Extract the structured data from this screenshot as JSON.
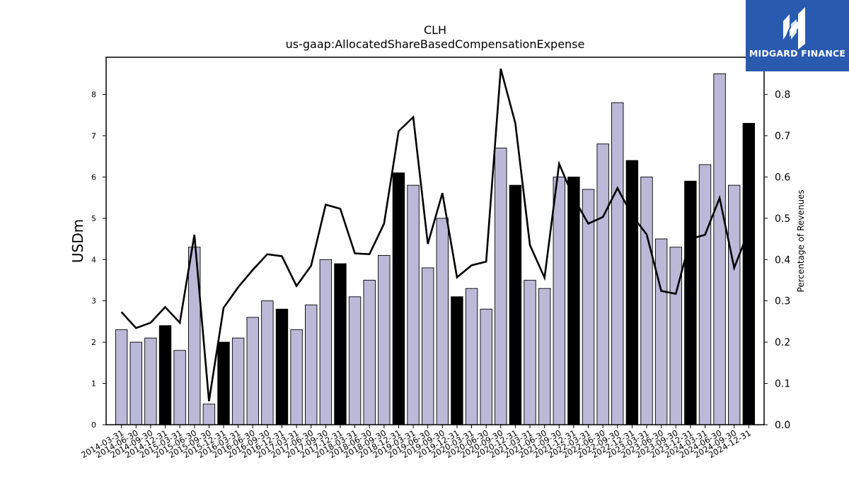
{
  "brand": {
    "name": "MIDGARD FINANCE",
    "bg_color": "#2a5ab0"
  },
  "chart_data": {
    "type": "bar",
    "title": "CLH",
    "subtitle": "us-gaap:AllocatedShareBasedCompensationExpense",
    "ylabel": "USDm",
    "y2label": "Percentage of Revenues",
    "ylim": [
      0,
      8.9
    ],
    "y2lim": [
      0,
      0.89
    ],
    "yticks": [
      0,
      1,
      2,
      3,
      4,
      5,
      6,
      7,
      8
    ],
    "y2ticks": [
      "0.0",
      "0.1",
      "0.2",
      "0.3",
      "0.4",
      "0.5",
      "0.6",
      "0.7",
      "0.8"
    ],
    "categories": [
      "2014-03-31",
      "2014-06-30",
      "2014-09-30",
      "2014-12-31",
      "2015-03-31",
      "2015-06-30",
      "2015-09-30",
      "2015-12-31",
      "2016-03-31",
      "2016-06-30",
      "2016-09-30",
      "2016-12-31",
      "2017-03-31",
      "2017-06-30",
      "2017-09-30",
      "2017-12-31",
      "2018-03-31",
      "2018-06-30",
      "2018-09-30",
      "2018-12-31",
      "2019-03-31",
      "2019-06-30",
      "2019-09-30",
      "2019-12-31",
      "2020-03-31",
      "2020-06-30",
      "2020-09-30",
      "2020-12-31",
      "2021-03-31",
      "2021-06-30",
      "2021-09-30",
      "2021-12-31",
      "2022-03-31",
      "2022-06-30",
      "2022-09-30",
      "2022-12-31",
      "2023-03-31",
      "2023-06-30",
      "2023-09-30",
      "2023-12-31",
      "2024-03-31",
      "2024-06-30",
      "2024-09-30",
      "2024-12-31"
    ],
    "series": [
      {
        "type": "bar",
        "values": [
          2.3,
          2.0,
          2.1,
          2.4,
          1.8,
          4.3,
          0.5,
          2.0,
          2.1,
          2.6,
          3.0,
          2.8,
          2.3,
          2.9,
          4.0,
          3.9,
          3.1,
          3.5,
          4.1,
          6.1,
          5.8,
          3.8,
          5.0,
          3.1,
          3.3,
          2.8,
          6.7,
          5.8,
          3.5,
          3.3,
          6.0,
          6.0,
          5.7,
          6.8,
          7.8,
          6.4,
          6.0,
          4.5,
          4.3,
          5.9,
          6.3,
          8.5,
          5.8,
          7.3
        ]
      },
      {
        "type": "line",
        "axis": "right",
        "values": [
          0.273,
          0.234,
          0.247,
          0.285,
          0.247,
          0.46,
          0.057,
          0.283,
          0.333,
          0.375,
          0.413,
          0.408,
          0.336,
          0.385,
          0.533,
          0.523,
          0.415,
          0.413,
          0.487,
          0.711,
          0.745,
          0.438,
          0.561,
          0.357,
          0.386,
          0.395,
          0.862,
          0.73,
          0.435,
          0.356,
          0.632,
          0.549,
          0.487,
          0.503,
          0.573,
          0.507,
          0.461,
          0.324,
          0.317,
          0.45,
          0.46,
          0.549,
          0.38,
          0.47
        ]
      }
    ],
    "colors": {
      "bar": "#bcb8d8",
      "bar_highlight": "#000000",
      "line": "#000000"
    },
    "highlight_categories": [
      "2014-12-31",
      "2015-12-31",
      "2016-12-31",
      "2017-12-31",
      "2018-12-31",
      "2019-12-31",
      "2020-12-31",
      "2021-12-31",
      "2022-12-31",
      "2023-12-31",
      "2024-12-31"
    ],
    "grid": false,
    "legend": "none"
  }
}
